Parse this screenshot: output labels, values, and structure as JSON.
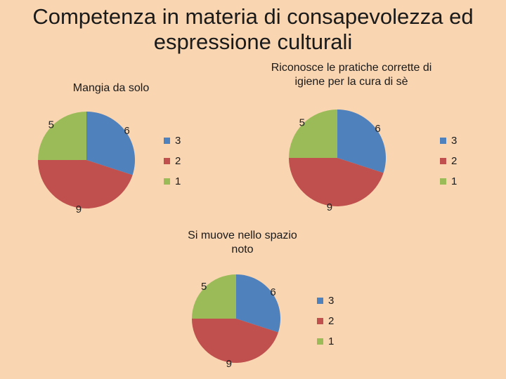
{
  "title": "Competenza in materia di consapevolezza ed espressione culturali",
  "colors": {
    "background": "#f9d5b2",
    "series": [
      "#4f81bd",
      "#c0504d",
      "#9bbb59"
    ]
  },
  "chart_data": [
    {
      "type": "pie",
      "title": "Mangia da solo",
      "categories": [
        "3",
        "2",
        "1"
      ],
      "values": [
        6,
        9,
        5
      ],
      "legend": "right"
    },
    {
      "type": "pie",
      "title": "Riconosce le pratiche corrette di igiene per la cura di sè",
      "categories": [
        "3",
        "2",
        "1"
      ],
      "values": [
        6,
        9,
        5
      ],
      "legend": "right"
    },
    {
      "type": "pie",
      "title": "Si muove nello spazio noto",
      "categories": [
        "3",
        "2",
        "1"
      ],
      "values": [
        6,
        9,
        5
      ],
      "legend": "right"
    }
  ]
}
